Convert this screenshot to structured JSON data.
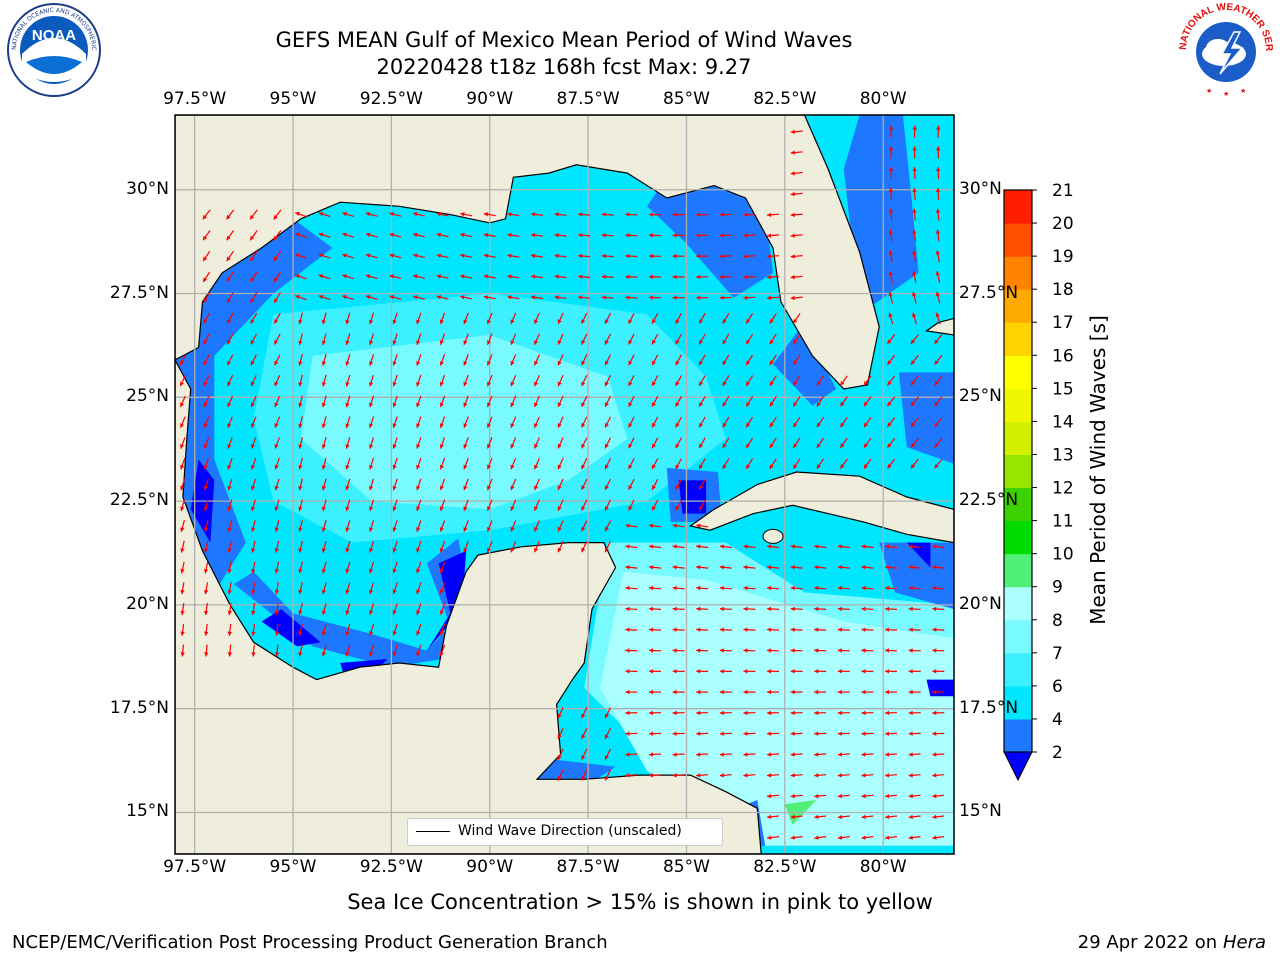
{
  "header": {
    "title_line1": "GEFS MEAN Gulf of Mexico Mean Period of Wind Waves",
    "title_line2": "20220428 t18z 168h fcst   Max: 9.27"
  },
  "logos": {
    "left": {
      "name": "noaa-logo",
      "text": "NOAA",
      "ring_text": "NATIONAL OCEANIC AND ATMOSPHERIC ADMINISTRATION · U.S. DEPARTMENT OF COMMERCE"
    },
    "right": {
      "name": "nws-logo",
      "ring_text": "NATIONAL WEATHER SERVICE"
    }
  },
  "map": {
    "lon_labels": [
      "97.5°W",
      "95°W",
      "92.5°W",
      "90°W",
      "87.5°W",
      "85°W",
      "82.5°W",
      "80°W"
    ],
    "lat_labels": [
      "30°N",
      "27.5°N",
      "25°N",
      "22.5°N",
      "20°N",
      "17.5°N",
      "15°N"
    ],
    "lon_values": [
      -97.5,
      -95,
      -92.5,
      -90,
      -87.5,
      -85,
      -82.5,
      -80
    ],
    "lat_values": [
      30,
      27.5,
      25,
      22.5,
      20,
      17.5,
      15
    ],
    "extent": {
      "lon": [
        -98.0,
        -78.2
      ],
      "lat": [
        14.0,
        31.8
      ]
    },
    "legend_label": "Wind Wave Direction (unscaled)",
    "colors": {
      "land": "#efeddb",
      "coast": "#000000",
      "grid": "#b0b0b0",
      "arrow": "#ff0000"
    }
  },
  "colorbar": {
    "label": "Mean Period of Wind Waves [s]",
    "ticks": [
      "2",
      "4",
      "6",
      "7",
      "8",
      "9",
      "10",
      "11",
      "12",
      "13",
      "14",
      "15",
      "16",
      "17",
      "18",
      "19",
      "20",
      "21"
    ],
    "levels": [
      {
        "from": 0,
        "to": 2,
        "color": "#0000ff"
      },
      {
        "from": 2,
        "to": 4,
        "color": "#1e78ff"
      },
      {
        "from": 4,
        "to": 6,
        "color": "#00e6ff"
      },
      {
        "from": 6,
        "to": 7,
        "color": "#3cf0ff"
      },
      {
        "from": 7,
        "to": 8,
        "color": "#78faff"
      },
      {
        "from": 8,
        "to": 9,
        "color": "#aaffff"
      },
      {
        "from": 9,
        "to": 10,
        "color": "#50f078"
      },
      {
        "from": 10,
        "to": 11,
        "color": "#00dc00"
      },
      {
        "from": 11,
        "to": 12,
        "color": "#3cd200"
      },
      {
        "from": 12,
        "to": 13,
        "color": "#96e600"
      },
      {
        "from": 13,
        "to": 14,
        "color": "#d2f000"
      },
      {
        "from": 14,
        "to": 15,
        "color": "#f0f500"
      },
      {
        "from": 15,
        "to": 16,
        "color": "#ffff00"
      },
      {
        "from": 16,
        "to": 17,
        "color": "#ffd200"
      },
      {
        "from": 17,
        "to": 18,
        "color": "#ffaa00"
      },
      {
        "from": 18,
        "to": 19,
        "color": "#ff8200"
      },
      {
        "from": 19,
        "to": 20,
        "color": "#ff5000"
      },
      {
        "from": 20,
        "to": 21,
        "color": "#ff1e00"
      }
    ]
  },
  "notes": {
    "sea_ice": "Sea Ice Concentration > 15% is shown in pink to yellow"
  },
  "footer": {
    "left": "NCEP/EMC/Verification Post Processing Product Generation Branch",
    "date": "29 Apr 2022 on ",
    "machine": "Hera"
  }
}
